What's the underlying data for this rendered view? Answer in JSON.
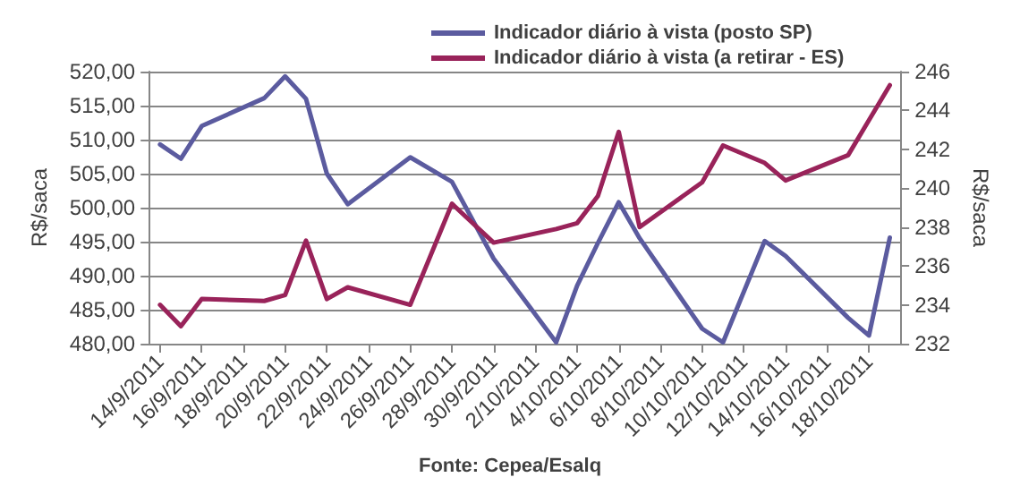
{
  "chart_data": {
    "type": "line",
    "ylabel": "R$/saca",
    "y2label": "R$/saca",
    "annotations": [
      "Fonte: Cepea/Esalq"
    ],
    "xlim": [
      "2011-09-13T12:00",
      "2011-10-19T12:00"
    ],
    "xticks": [
      {
        "value": "2011-09-14",
        "label": "14/9/2011"
      },
      {
        "value": "2011-09-16",
        "label": "16/9/2011"
      },
      {
        "value": "2011-09-18",
        "label": "18/9/2011"
      },
      {
        "value": "2011-09-20",
        "label": "20/9/2011"
      },
      {
        "value": "2011-09-22",
        "label": "22/9/2011"
      },
      {
        "value": "2011-09-24",
        "label": "24/9/2011"
      },
      {
        "value": "2011-09-26",
        "label": "26/9/2011"
      },
      {
        "value": "2011-09-28",
        "label": "28/9/2011"
      },
      {
        "value": "2011-09-30",
        "label": "30/9/2011"
      },
      {
        "value": "2011-10-02",
        "label": "2/10/2011"
      },
      {
        "value": "2011-10-04",
        "label": "4/10/2011"
      },
      {
        "value": "2011-10-06",
        "label": "6/10/2011"
      },
      {
        "value": "2011-10-08",
        "label": "8/10/2011"
      },
      {
        "value": "2011-10-10",
        "label": "10/10/2011"
      },
      {
        "value": "2011-10-12",
        "label": "12/10/2011"
      },
      {
        "value": "2011-10-14",
        "label": "14/10/2011"
      },
      {
        "value": "2011-10-16",
        "label": "16/10/2011"
      },
      {
        "value": "2011-10-18",
        "label": "18/10/2011"
      }
    ],
    "ylim": [
      480,
      520
    ],
    "yticks": [
      {
        "value": 480,
        "label": "480,00"
      },
      {
        "value": 485,
        "label": "485,00"
      },
      {
        "value": 490,
        "label": "490,00"
      },
      {
        "value": 495,
        "label": "495,00"
      },
      {
        "value": 500,
        "label": "500,00"
      },
      {
        "value": 505,
        "label": "505,00"
      },
      {
        "value": 510,
        "label": "510,00"
      },
      {
        "value": 515,
        "label": "515,00"
      },
      {
        "value": 520,
        "label": "520,00"
      }
    ],
    "y2lim": [
      232,
      246
    ],
    "y2ticks": [
      232,
      234,
      236,
      238,
      240,
      242,
      244,
      246
    ],
    "grid": "y",
    "legend": "top",
    "marker": "none",
    "line_style": "solid",
    "series": [
      {
        "name": "Indicador diário à vista (posto SP)",
        "color": "#5b5b9f",
        "x": [
          "2011-09-14",
          "2011-09-15",
          "2011-09-16",
          "2011-09-19",
          "2011-09-20",
          "2011-09-21",
          "2011-09-22",
          "2011-09-23",
          "2011-09-26",
          "2011-09-28",
          "2011-09-30",
          "2011-10-03",
          "2011-10-04",
          "2011-10-05",
          "2011-10-06",
          "2011-10-07",
          "2011-10-10",
          "2011-10-11",
          "2011-10-13",
          "2011-10-14",
          "2011-10-17",
          "2011-10-18",
          "2011-10-19"
        ],
        "values": [
          509.3,
          507.2,
          512,
          516.1,
          519.3,
          516,
          505,
          500.5,
          507.4,
          503.8,
          492.5,
          480.2,
          488.5,
          494.8,
          500.8,
          495.5,
          482.2,
          480.2,
          495.1,
          492.9,
          483.8,
          481.2,
          495.6
        ]
      },
      {
        "name": "Indicador diário à vista (a retirar - ES)",
        "color": "#99235a",
        "axis": "y2",
        "x": [
          "2011-09-14",
          "2011-09-15",
          "2011-09-16",
          "2011-09-19",
          "2011-09-20",
          "2011-09-21",
          "2011-09-22",
          "2011-09-23",
          "2011-09-26",
          "2011-09-28",
          "2011-09-30",
          "2011-10-03",
          "2011-10-04",
          "2011-10-05",
          "2011-10-06",
          "2011-10-07",
          "2011-10-10",
          "2011-10-11",
          "2011-10-13",
          "2011-10-14",
          "2011-10-17",
          "2011-10-18",
          "2011-10-19"
        ],
        "values": [
          234.0,
          232.9,
          234.3,
          234.2,
          234.5,
          237.3,
          234.3,
          234.9,
          234.0,
          239.2,
          237.2,
          237.9,
          238.2,
          239.6,
          242.9,
          238.0,
          240.3,
          242.2,
          241.3,
          240.4,
          241.7,
          243.5,
          245.3
        ]
      }
    ]
  }
}
